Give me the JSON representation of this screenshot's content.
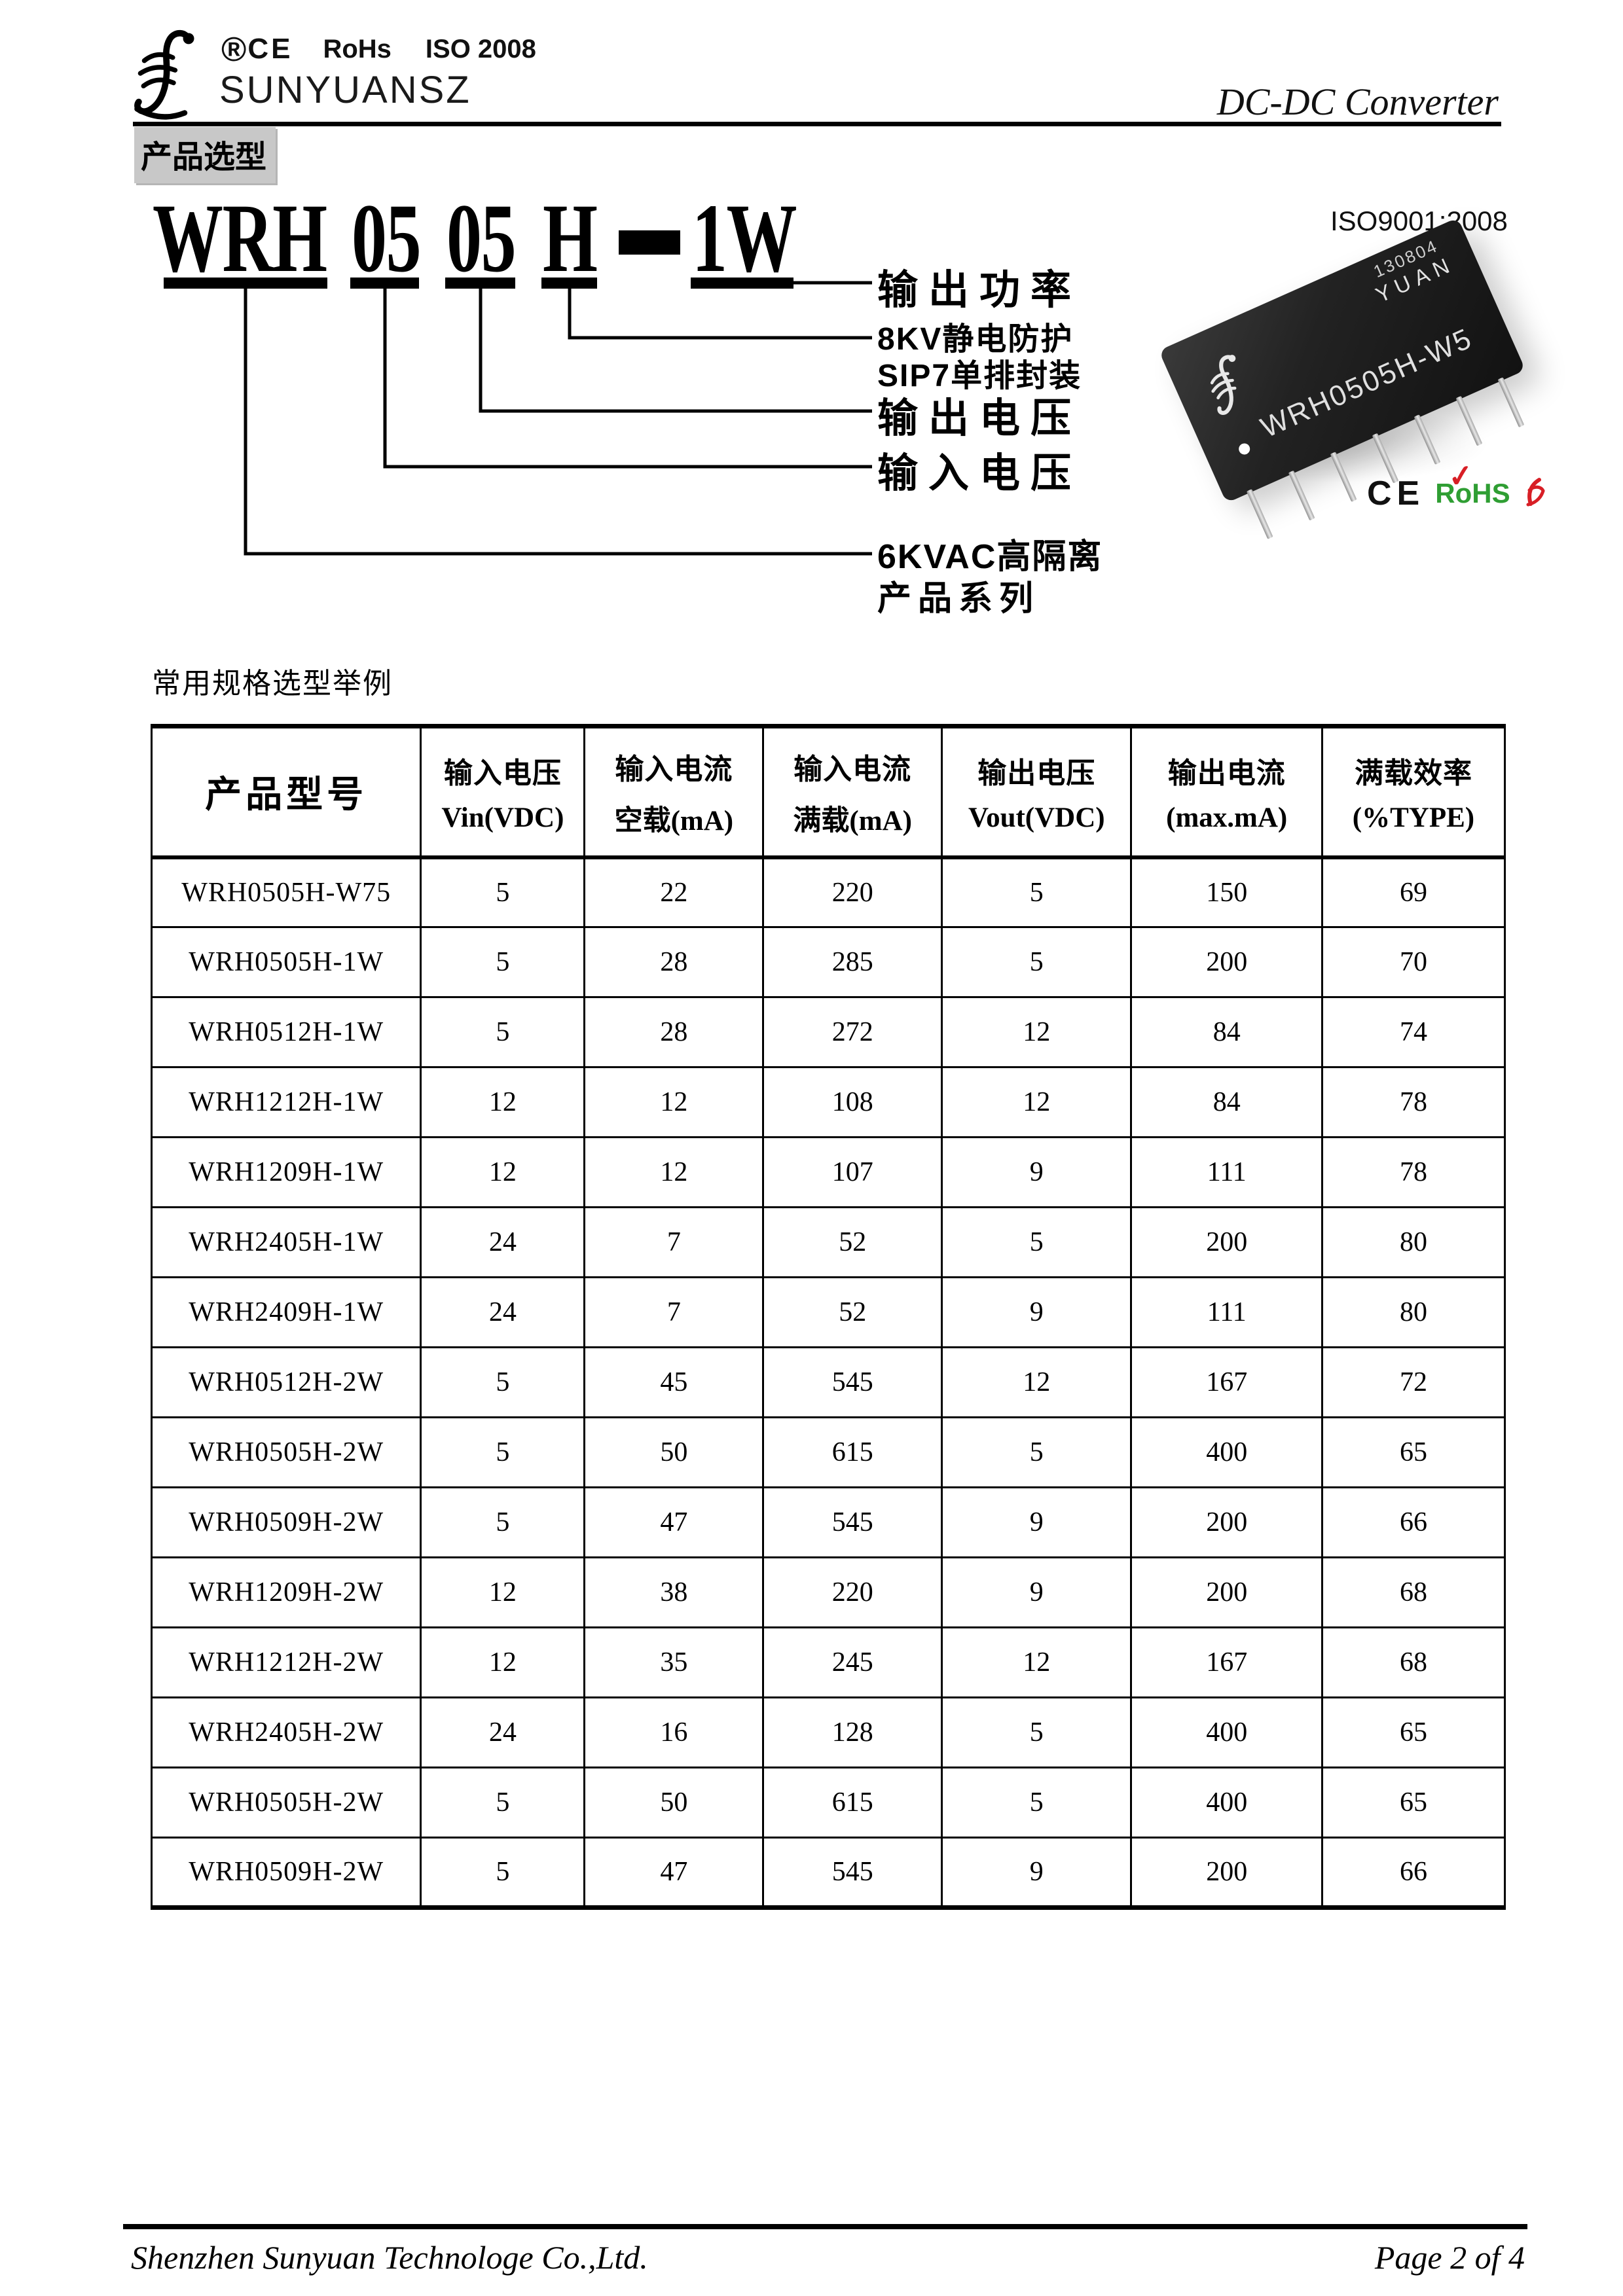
{
  "header": {
    "reg_mark": "®",
    "ce_mark": "CE",
    "rohs_mark": "RoHs",
    "iso_mark": "ISO 2008",
    "brand": "SUNYUANSZ",
    "doc_title": "DC-DC Converter"
  },
  "section_title": "产品选型",
  "diagram": {
    "segments": [
      "WRH",
      "05",
      "05",
      "H",
      "1W"
    ],
    "separator": "—",
    "labels": {
      "output_power": "输出功率",
      "esd": "8KV静电防护",
      "package": "SIP7单排封装",
      "output_voltage": "输出电压",
      "input_voltage": "输入电压",
      "isolation": "6KVAC高隔离",
      "series": "产品系列"
    }
  },
  "photo": {
    "iso_cert": "ISO9001:2008",
    "date_code": "130804",
    "brand": "YUAN",
    "model": "WRH0505H-W5",
    "ce": "CE",
    "rohs": "RoHS",
    "rohs_check": "✓"
  },
  "icons": {
    "sunyuan_logo": "script-f-with-waves",
    "sgs_mark": "red-scribble-mark"
  },
  "table": {
    "caption": "常用规格选型举例",
    "model_header": "产品型号",
    "columns": [
      {
        "line1": "输入电压",
        "line2": "Vin(VDC)"
      },
      {
        "line1": "输入电流",
        "line2": "空载(mA)"
      },
      {
        "line1": "输入电流",
        "line2": "满载(mA)"
      },
      {
        "line1": "输出电压",
        "line2": "Vout(VDC)"
      },
      {
        "line1": "输出电流",
        "line2": "(max.mA)"
      },
      {
        "line1": "满载效率",
        "line2": "(%TYPE)"
      }
    ],
    "rows": [
      [
        "WRH0505H-W75",
        "5",
        "22",
        "220",
        "5",
        "150",
        "69"
      ],
      [
        "WRH0505H-1W",
        "5",
        "28",
        "285",
        "5",
        "200",
        "70"
      ],
      [
        "WRH0512H-1W",
        "5",
        "28",
        "272",
        "12",
        "84",
        "74"
      ],
      [
        "WRH1212H-1W",
        "12",
        "12",
        "108",
        "12",
        "84",
        "78"
      ],
      [
        "WRH1209H-1W",
        "12",
        "12",
        "107",
        "9",
        "111",
        "78"
      ],
      [
        "WRH2405H-1W",
        "24",
        "7",
        "52",
        "5",
        "200",
        "80"
      ],
      [
        "WRH2409H-1W",
        "24",
        "7",
        "52",
        "9",
        "111",
        "80"
      ],
      [
        "WRH0512H-2W",
        "5",
        "45",
        "545",
        "12",
        "167",
        "72"
      ],
      [
        "WRH0505H-2W",
        "5",
        "50",
        "615",
        "5",
        "400",
        "65"
      ],
      [
        "WRH0509H-2W",
        "5",
        "47",
        "545",
        "9",
        "200",
        "66"
      ],
      [
        "WRH1209H-2W",
        "12",
        "38",
        "220",
        "9",
        "200",
        "68"
      ],
      [
        "WRH1212H-2W",
        "12",
        "35",
        "245",
        "12",
        "167",
        "68"
      ],
      [
        "WRH2405H-2W",
        "24",
        "16",
        "128",
        "5",
        "400",
        "65"
      ],
      [
        "WRH0505H-2W",
        "5",
        "50",
        "615",
        "5",
        "400",
        "65"
      ],
      [
        "WRH0509H-2W",
        "5",
        "47",
        "545",
        "9",
        "200",
        "66"
      ]
    ]
  },
  "footer": {
    "company": "Shenzhen Sunyuan Technologe Co.,Ltd.",
    "page": "Page 2 of 4"
  }
}
